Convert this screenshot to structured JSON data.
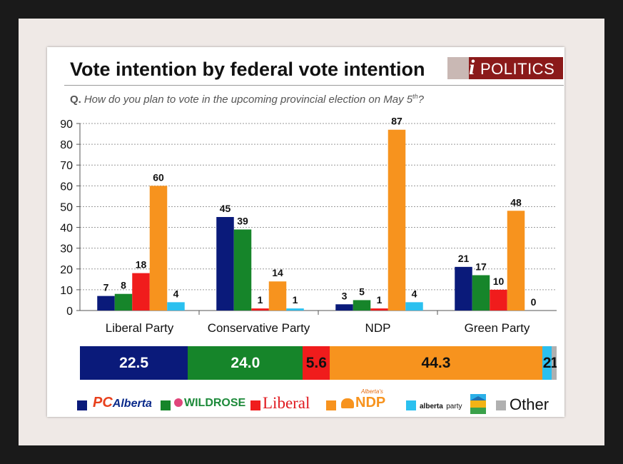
{
  "header": {
    "title": "Vote intention by federal vote intention",
    "logo_text": "POLITICS",
    "logo_letter": "i",
    "question_label": "Q.",
    "question": "How do you plan to vote in the upcoming provincial election on May 5",
    "question_sup": "th",
    "question_end": "?"
  },
  "colors": {
    "PC": "#0a1a7a",
    "Wildrose": "#16852a",
    "Liberal": "#f01c1c",
    "NDP": "#f7931e",
    "Alberta Party": "#2bc0ef",
    "Other": "#b0b0b0"
  },
  "chart_data": [
    {
      "type": "bar",
      "categories": [
        "Liberal Party",
        "Conservative Party",
        "NDP",
        "Green Party"
      ],
      "ylim": [
        0,
        90
      ],
      "yticks": [
        "0",
        "10",
        "20",
        "30",
        "40",
        "50",
        "60",
        "70",
        "80",
        "90"
      ],
      "grid": true,
      "series": [
        {
          "name": "PC Alberta",
          "color": "#0a1a7a",
          "values": [
            7,
            45,
            3,
            21
          ]
        },
        {
          "name": "Wildrose",
          "color": "#16852a",
          "values": [
            8,
            39,
            5,
            17
          ]
        },
        {
          "name": "Liberal",
          "color": "#f01c1c",
          "values": [
            18,
            1,
            1,
            10
          ]
        },
        {
          "name": "Alberta's NDP",
          "color": "#f7931e",
          "values": [
            60,
            14,
            87,
            48
          ]
        },
        {
          "name": "alberta party",
          "color": "#2bc0ef",
          "values": [
            4,
            1,
            4,
            0
          ]
        }
      ],
      "data_labels": [
        [
          "7",
          "8",
          "18",
          "60",
          "4"
        ],
        [
          "45",
          "39",
          "1",
          "14",
          "1"
        ],
        [
          "3",
          "5",
          "1",
          "87",
          "4"
        ],
        [
          "21",
          "17",
          "10",
          "48",
          "0"
        ]
      ],
      "legend_position": "bottom"
    },
    {
      "type": "bar",
      "orientation": "horizontal-stacked",
      "segments": [
        {
          "name": "PC Alberta",
          "value": 22.5,
          "label": "22.5",
          "color": "#0a1a7a",
          "text_color": "#ffffff"
        },
        {
          "name": "Wildrose",
          "value": 24.0,
          "label": "24.0",
          "color": "#16852a",
          "text_color": "#ffffff"
        },
        {
          "name": "Liberal",
          "value": 5.6,
          "label": "5.6",
          "color": "#f01c1c",
          "text_color": "#111111"
        },
        {
          "name": "Alberta's NDP",
          "value": 44.3,
          "label": "44.3",
          "color": "#f7931e",
          "text_color": "#111111"
        },
        {
          "name": "alberta party",
          "value": 2,
          "label": "2",
          "color": "#2bc0ef",
          "text_color": "#111111"
        },
        {
          "name": "Other",
          "value": 1,
          "label": "1",
          "color": "#b0b0b0",
          "text_color": "#111111"
        }
      ]
    }
  ],
  "legend": {
    "pc_prefix": "PC",
    "pc_suffix": "Alberta",
    "wildrose": "WILDROSE",
    "liberal": "Liberal",
    "ndp_small": "Alberta's",
    "ndp": "NDP",
    "alberta_party": "alberta",
    "alberta_party_suffix": "party",
    "other": "Other"
  }
}
